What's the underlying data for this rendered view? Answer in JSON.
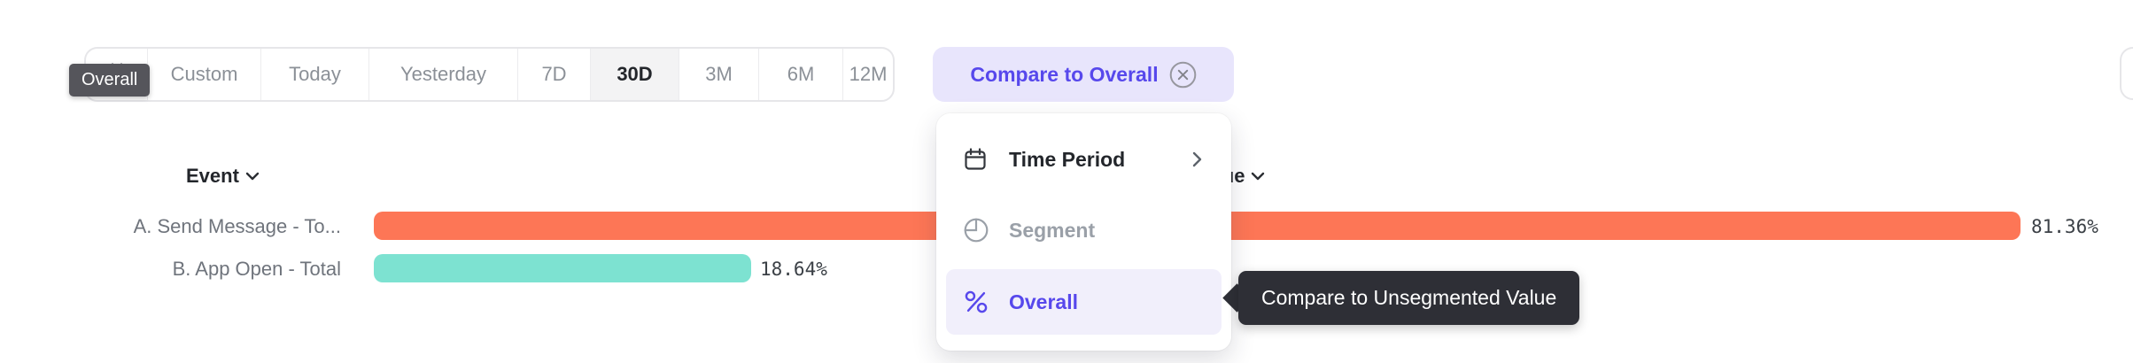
{
  "overall_tooltip": {
    "text": "Overall"
  },
  "toolbar": {
    "buttons": [
      {
        "label": "Custom"
      },
      {
        "label": "Today"
      },
      {
        "label": "Yesterday"
      },
      {
        "label": "7D"
      },
      {
        "label": "30D",
        "selected": true
      },
      {
        "label": "3M"
      },
      {
        "label": "6M"
      },
      {
        "label": "12M"
      }
    ],
    "selected": "30D"
  },
  "compare_pill": {
    "label": "Compare to Overall"
  },
  "chart": {
    "event_header": "Event",
    "value_header": "Value",
    "rows": [
      {
        "label": "A. Send Message - To...",
        "value": 81.36,
        "value_label": "81.36%",
        "color": "#fd7656"
      },
      {
        "label": "B. App Open - Total",
        "value": 18.64,
        "value_label": "18.64%",
        "color": "#7de2d1"
      }
    ]
  },
  "chart_data": {
    "type": "bar",
    "orientation": "horizontal",
    "categories": [
      "A. Send Message - To...",
      "B. App Open - Total"
    ],
    "values": [
      81.36,
      18.64
    ],
    "value_labels": [
      "81.36%",
      "18.64%"
    ],
    "colors": [
      "#fd7656",
      "#7de2d1"
    ],
    "xlim": [
      0,
      81.36
    ],
    "column_headers": [
      "Event",
      "Value"
    ],
    "legend": "none",
    "grid": false
  },
  "menu": {
    "items": [
      {
        "label": "Time Period",
        "icon": "calendar-icon",
        "has_submenu": true
      },
      {
        "label": "Segment",
        "icon": "segment-icon",
        "disabled": true
      },
      {
        "label": "Overall",
        "icon": "percent-icon",
        "selected": true
      }
    ]
  },
  "compare_tooltip": {
    "text": "Compare to Unsegmented Value"
  },
  "colors": {
    "accent_purple": "#5748ec",
    "pill_bg": "#e8e5fc",
    "menu_highlight_bg": "#f1effb",
    "bar_orange": "#fd7656",
    "bar_teal": "#7de2d1",
    "tooltip_dark_bg": "#2e2f36",
    "overall_tooltip_bg": "#55555b",
    "selected_segment_bg": "#f3f3f4"
  }
}
